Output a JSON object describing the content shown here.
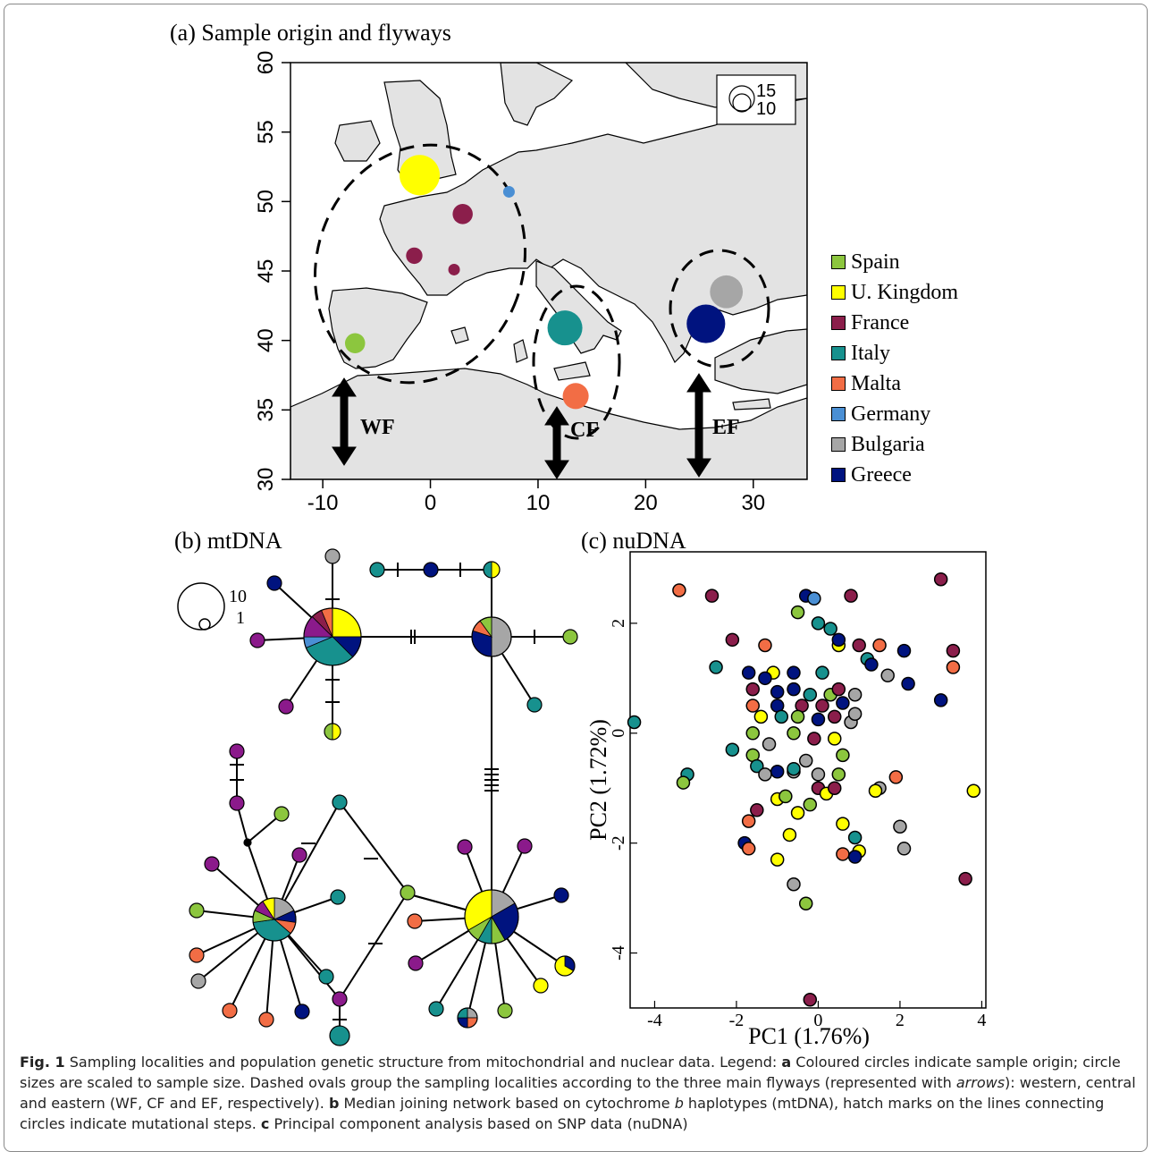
{
  "panels": {
    "a": "(a) Sample origin and flyways",
    "b": "(b) mtDNA",
    "c": "(c) nuDNA"
  },
  "colors": {
    "Spain": "#8cc63e",
    "U. Kingdom": "#ffff00",
    "France": "#8b1e4b",
    "Italy": "#17918e",
    "Malta": "#f26d45",
    "Germany": "#4a8fd4",
    "Bulgaria": "#a6a6a6",
    "Greece": "#00137f",
    "purple": "#8b1a8b",
    "map_land": "#e3e3e3"
  },
  "legend": [
    "Spain",
    "U. Kingdom",
    "France",
    "Italy",
    "Malta",
    "Germany",
    "Bulgaria",
    "Greece"
  ],
  "map": {
    "xticks": [
      "-10",
      "0",
      "10",
      "20",
      "30"
    ],
    "yticks": [
      "30",
      "35",
      "40",
      "45",
      "50",
      "55",
      "60"
    ],
    "flyways": [
      "WF",
      "CF",
      "EF"
    ],
    "size_legend": [
      "15",
      "10"
    ]
  },
  "network": {
    "size_legend": [
      "10",
      "1"
    ]
  },
  "chart_data": [
    {
      "type": "scatter",
      "panel": "a",
      "xlim": [
        -13,
        35
      ],
      "ylim": [
        30,
        60
      ],
      "points": [
        {
          "country": "Spain",
          "lon": -7,
          "lat": 39.8,
          "n": 3
        },
        {
          "country": "U. Kingdom",
          "lon": -1,
          "lat": 51.9,
          "n": 12
        },
        {
          "country": "France",
          "lon": 3,
          "lat": 49.1,
          "n": 3
        },
        {
          "country": "France",
          "lon": -1.5,
          "lat": 46.1,
          "n": 2
        },
        {
          "country": "France",
          "lon": 2.2,
          "lat": 45.1,
          "n": 1
        },
        {
          "country": "Germany",
          "lon": 7.3,
          "lat": 50.7,
          "n": 1
        },
        {
          "country": "Italy",
          "lon": 12.5,
          "lat": 40.9,
          "n": 9
        },
        {
          "country": "Malta",
          "lon": 13.5,
          "lat": 36,
          "n": 5
        },
        {
          "country": "Bulgaria",
          "lon": 27.5,
          "lat": 43.5,
          "n": 8
        },
        {
          "country": "Greece",
          "lon": 25.6,
          "lat": 41.2,
          "n": 11
        }
      ]
    },
    {
      "type": "scatter",
      "panel": "c",
      "xlabel": "PC1 (1.76%)",
      "ylabel": "PC2 (1.72%)",
      "xticks": [
        "-4",
        "-2",
        "0",
        "2",
        "4"
      ],
      "yticks": [
        "-4",
        "-2",
        "0",
        "2"
      ],
      "xlim": [
        -4.6,
        4.1
      ],
      "ylim": [
        -5.0,
        3.3
      ],
      "points": [
        {
          "x": -3.4,
          "y": 2.6,
          "c": "Malta"
        },
        {
          "x": -2.6,
          "y": 2.5,
          "c": "France"
        },
        {
          "x": -0.3,
          "y": 2.5,
          "c": "Greece"
        },
        {
          "x": -0.1,
          "y": 2.45,
          "c": "Germany"
        },
        {
          "x": 0.8,
          "y": 2.5,
          "c": "France"
        },
        {
          "x": 3.0,
          "y": 2.8,
          "c": "France"
        },
        {
          "x": -0.5,
          "y": 2.2,
          "c": "Spain"
        },
        {
          "x": 0.0,
          "y": 2.0,
          "c": "Italy"
        },
        {
          "x": 0.3,
          "y": 1.9,
          "c": "Italy"
        },
        {
          "x": -2.1,
          "y": 1.7,
          "c": "France"
        },
        {
          "x": -1.3,
          "y": 1.6,
          "c": "Malta"
        },
        {
          "x": 0.5,
          "y": 1.6,
          "c": "Yellow"
        },
        {
          "x": 0.5,
          "y": 1.7,
          "c": "Greece"
        },
        {
          "x": 1.0,
          "y": 1.6,
          "c": "France"
        },
        {
          "x": 1.5,
          "y": 1.6,
          "c": "Malta"
        },
        {
          "x": 1.2,
          "y": 1.35,
          "c": "Italy"
        },
        {
          "x": 2.1,
          "y": 1.5,
          "c": "Greece"
        },
        {
          "x": 3.3,
          "y": 1.5,
          "c": "France"
        },
        {
          "x": 3.3,
          "y": 1.2,
          "c": "Malta"
        },
        {
          "x": -2.5,
          "y": 1.2,
          "c": "Italy"
        },
        {
          "x": -1.7,
          "y": 1.1,
          "c": "Greece"
        },
        {
          "x": -1.1,
          "y": 1.1,
          "c": "Yellow"
        },
        {
          "x": -1.3,
          "y": 1.0,
          "c": "Greece"
        },
        {
          "x": -0.6,
          "y": 1.1,
          "c": "Greece"
        },
        {
          "x": 0.1,
          "y": 1.1,
          "c": "Italy"
        },
        {
          "x": 1.3,
          "y": 1.25,
          "c": "Greece"
        },
        {
          "x": 1.7,
          "y": 1.05,
          "c": "Bulgaria"
        },
        {
          "x": 2.2,
          "y": 0.9,
          "c": "Greece"
        },
        {
          "x": -1.6,
          "y": 0.8,
          "c": "France"
        },
        {
          "x": -1.0,
          "y": 0.75,
          "c": "Greece"
        },
        {
          "x": -0.6,
          "y": 0.8,
          "c": "Greece"
        },
        {
          "x": -0.2,
          "y": 0.7,
          "c": "Italy"
        },
        {
          "x": 0.3,
          "y": 0.7,
          "c": "Spain"
        },
        {
          "x": 0.5,
          "y": 0.8,
          "c": "France"
        },
        {
          "x": 0.9,
          "y": 0.7,
          "c": "Bulgaria"
        },
        {
          "x": -1.6,
          "y": 0.5,
          "c": "Malta"
        },
        {
          "x": -1.0,
          "y": 0.5,
          "c": "Greece"
        },
        {
          "x": -0.4,
          "y": 0.5,
          "c": "France"
        },
        {
          "x": 0.1,
          "y": 0.5,
          "c": "France"
        },
        {
          "x": 0.6,
          "y": 0.55,
          "c": "Greece"
        },
        {
          "x": 3.0,
          "y": 0.6,
          "c": "Greece"
        },
        {
          "x": -1.4,
          "y": 0.3,
          "c": "Yellow"
        },
        {
          "x": -0.9,
          "y": 0.3,
          "c": "Italy"
        },
        {
          "x": -0.5,
          "y": 0.3,
          "c": "Spain"
        },
        {
          "x": 0.0,
          "y": 0.25,
          "c": "Greece"
        },
        {
          "x": 0.4,
          "y": 0.3,
          "c": "France"
        },
        {
          "x": 0.8,
          "y": 0.2,
          "c": "Bulgaria"
        },
        {
          "x": 0.9,
          "y": 0.35,
          "c": "Bulgaria"
        },
        {
          "x": -1.6,
          "y": 0.0,
          "c": "Spain"
        },
        {
          "x": -0.6,
          "y": 0.0,
          "c": "Spain"
        },
        {
          "x": -0.1,
          "y": -0.1,
          "c": "France"
        },
        {
          "x": 0.4,
          "y": -0.1,
          "c": "Yellow"
        },
        {
          "x": -1.2,
          "y": -0.2,
          "c": "Bulgaria"
        },
        {
          "x": -2.1,
          "y": -0.3,
          "c": "Italy"
        },
        {
          "x": -1.6,
          "y": -0.4,
          "c": "Spain"
        },
        {
          "x": -0.3,
          "y": -0.5,
          "c": "Bulgaria"
        },
        {
          "x": 0.6,
          "y": -0.4,
          "c": "Spain"
        },
        {
          "x": -1.5,
          "y": -0.6,
          "c": "Italy"
        },
        {
          "x": -1.3,
          "y": -0.75,
          "c": "Bulgaria"
        },
        {
          "x": -1.0,
          "y": -0.7,
          "c": "Greece"
        },
        {
          "x": -0.6,
          "y": -0.7,
          "c": "Bulgaria"
        },
        {
          "x": -0.6,
          "y": -0.65,
          "c": "Italy"
        },
        {
          "x": 0.0,
          "y": -0.75,
          "c": "Bulgaria"
        },
        {
          "x": 0.5,
          "y": -0.75,
          "c": "Spain"
        },
        {
          "x": -3.2,
          "y": -0.75,
          "c": "Italy"
        },
        {
          "x": -3.3,
          "y": -0.9,
          "c": "Spain"
        },
        {
          "x": 0.0,
          "y": -1.0,
          "c": "France"
        },
        {
          "x": 1.5,
          "y": -1.0,
          "c": "Bulgaria"
        },
        {
          "x": 1.4,
          "y": -1.05,
          "c": "Yellow"
        },
        {
          "x": 3.8,
          "y": -1.05,
          "c": "Yellow"
        },
        {
          "x": -1.0,
          "y": -1.2,
          "c": "Yellow"
        },
        {
          "x": -0.8,
          "y": -1.15,
          "c": "Spain"
        },
        {
          "x": 0.2,
          "y": -1.1,
          "c": "Yellow"
        },
        {
          "x": 0.4,
          "y": -1.0,
          "c": "France"
        },
        {
          "x": 1.9,
          "y": -0.8,
          "c": "Malta"
        },
        {
          "x": -0.2,
          "y": -1.3,
          "c": "Spain"
        },
        {
          "x": -1.5,
          "y": -1.4,
          "c": "France"
        },
        {
          "x": -0.5,
          "y": -1.45,
          "c": "Yellow"
        },
        {
          "x": -1.7,
          "y": -1.6,
          "c": "Malta"
        },
        {
          "x": -0.7,
          "y": -1.85,
          "c": "Yellow"
        },
        {
          "x": 0.6,
          "y": -1.65,
          "c": "Yellow"
        },
        {
          "x": 2.0,
          "y": -1.7,
          "c": "Bulgaria"
        },
        {
          "x": -1.8,
          "y": -2.0,
          "c": "Greece"
        },
        {
          "x": -1.7,
          "y": -2.1,
          "c": "Malta"
        },
        {
          "x": 0.9,
          "y": -1.9,
          "c": "Italy"
        },
        {
          "x": 0.6,
          "y": -2.2,
          "c": "Malta"
        },
        {
          "x": 1.0,
          "y": -2.15,
          "c": "Yellow"
        },
        {
          "x": 0.9,
          "y": -2.25,
          "c": "Greece"
        },
        {
          "x": 2.1,
          "y": -2.1,
          "c": "Bulgaria"
        },
        {
          "x": -1.0,
          "y": -2.3,
          "c": "Yellow"
        },
        {
          "x": -0.6,
          "y": -2.75,
          "c": "Bulgaria"
        },
        {
          "x": -0.3,
          "y": -3.1,
          "c": "Spain"
        },
        {
          "x": 3.6,
          "y": -2.65,
          "c": "France"
        },
        {
          "x": -0.2,
          "y": -4.85,
          "c": "France"
        },
        {
          "x": -4.5,
          "y": 0.2,
          "c": "Italy"
        }
      ]
    }
  ],
  "caption": {
    "fig": "Fig. 1",
    "text1": " Sampling localities and population genetic structure from mitochondrial and nuclear data. Legend: ",
    "a": "a",
    "text2": " Coloured circles indicate sample origin; circle sizes are scaled to sample size. Dashed ovals group the sampling localities according to the three main flyways (represented with ",
    "arrows": "arrows",
    "text3": "): western, central and eastern (WF, CF and EF, respectively). ",
    "b": "b",
    "text4": " Median joining network based on cytochrome ",
    "bi": "b",
    "text5": " haplotypes (mtDNA), hatch marks on the lines connecting circles indicate mutational steps. ",
    "c": "c",
    "text6": " Principal component analysis based on SNP data (nuDNA)"
  }
}
